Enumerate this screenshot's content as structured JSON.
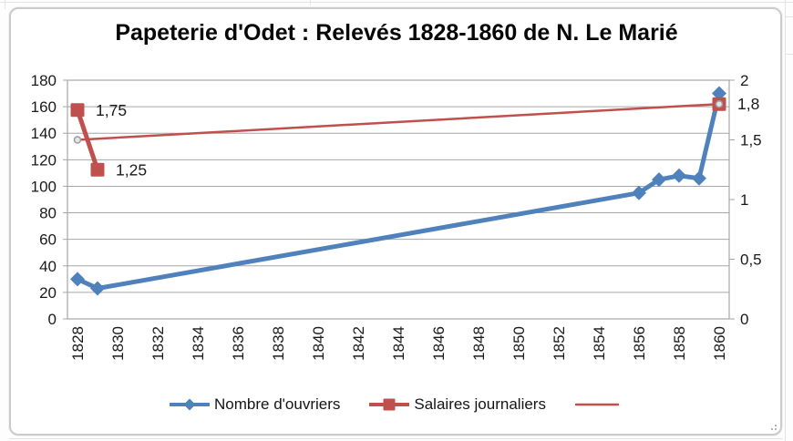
{
  "chart_data": {
    "type": "line",
    "title": "Papeterie d'Odet : Relevés 1828-1860 de N. Le Marié",
    "x_axis": {
      "categories_start": 1828,
      "categories_end": 1860,
      "tick_labels": [
        "1828",
        "1830",
        "1832",
        "1834",
        "1836",
        "1838",
        "1840",
        "1842",
        "1844",
        "1846",
        "1848",
        "1850",
        "1852",
        "1854",
        "1856",
        "1858",
        "1860"
      ],
      "label_rotation_deg": 90
    },
    "y_axis_left": {
      "min": 0,
      "max": 180,
      "tick_step": 20,
      "tick_labels": [
        "0",
        "20",
        "40",
        "60",
        "80",
        "100",
        "120",
        "140",
        "160",
        "180"
      ]
    },
    "y_axis_right": {
      "min": 0,
      "max": 2,
      "tick_step": 0.5,
      "tick_labels": [
        "0",
        "0,5",
        "1",
        "1,5",
        "2"
      ]
    },
    "gridlines": {
      "horizontal": true,
      "vertical": false,
      "color": "#a6a6a6"
    },
    "axis_text_color": "#1a1a1a",
    "legend_position": "bottom",
    "series": [
      {
        "name": "Nombre d'ouvriers",
        "axis": "left",
        "color": "#4F81BD",
        "marker": "diamond",
        "line_width": 5,
        "connect": "all",
        "points": [
          [
            1828,
            30
          ],
          [
            1829,
            23
          ],
          [
            1856,
            95
          ],
          [
            1857,
            105
          ],
          [
            1858,
            108
          ],
          [
            1859,
            106
          ],
          [
            1860,
            170
          ]
        ]
      },
      {
        "name": "Salaires journaliers",
        "axis": "right",
        "color": "#C0504D",
        "marker": "square",
        "line_width": 5,
        "connect": "consecutive-years",
        "points": [
          [
            1828,
            1.75
          ],
          [
            1829,
            1.25
          ],
          [
            1860,
            1.8
          ]
        ],
        "data_labels": [
          {
            "year": 1828,
            "text": "1,75"
          },
          {
            "year": 1829,
            "text": "1,25"
          },
          {
            "year": 1860,
            "text": "1,8"
          }
        ]
      },
      {
        "name": "",
        "axis": "right",
        "color": "#C0504D",
        "marker": "circle",
        "marker_fill": "#e5e5e5",
        "marker_stroke": "#9b9b9b",
        "line_width": 2.5,
        "connect": "all",
        "points": [
          [
            1828,
            1.5
          ],
          [
            1860,
            1.8
          ]
        ]
      }
    ]
  },
  "legend": {
    "items": [
      {
        "label": "Nombre d'ouvriers"
      },
      {
        "label": "Salaires journaliers"
      },
      {
        "label": ""
      }
    ]
  }
}
